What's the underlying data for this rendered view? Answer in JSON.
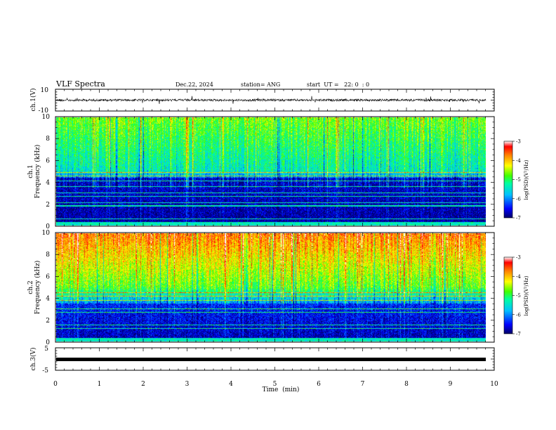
{
  "header": {
    "title": "VLF Spectra",
    "date": "Dec.22, 2024",
    "station": "station= ANG",
    "start_ut": "start  UT =   22: 0  : 0"
  },
  "chart_data": [
    {
      "type": "line",
      "panel": "ch1-waveform",
      "ylabel": "ch.1(V)",
      "ylim": [
        -10,
        10
      ],
      "yticks": [
        "10",
        "-10"
      ],
      "xlim": [
        0,
        10
      ]
    },
    {
      "type": "heatmap",
      "panel": "ch1-spectrogram",
      "ylabel_line1": "ch.1",
      "ylabel_line2": "Frequency (kHz)",
      "ylim": [
        0,
        10
      ],
      "yticks": [
        "10",
        "8",
        "6",
        "4",
        "2",
        "0"
      ],
      "xlim": [
        0,
        10
      ],
      "colorbar": {
        "label": "log(PSD)(V²/Hz)",
        "range": [
          -7,
          -3
        ],
        "ticks": [
          "-3",
          "-4",
          "-5",
          "-6",
          "-7"
        ]
      }
    },
    {
      "type": "heatmap",
      "panel": "ch2-spectrogram",
      "ylabel_line1": "ch.2",
      "ylabel_line2": "Frequency (kHz)",
      "ylim": [
        0,
        10
      ],
      "yticks": [
        "10",
        "8",
        "6",
        "4",
        "2",
        "0"
      ],
      "xlim": [
        0,
        10
      ],
      "colorbar": {
        "label": "log(PSD)(V²/Hz)",
        "range": [
          -7,
          -3
        ],
        "ticks": [
          "-3",
          "-4",
          "-5",
          "-6",
          "-7"
        ]
      }
    },
    {
      "type": "line",
      "panel": "ch3-waveform",
      "ylabel": "ch.3(V)",
      "ylim": [
        -5,
        5
      ],
      "yticks": [
        "5",
        "-5"
      ],
      "xlim": [
        0,
        10
      ]
    }
  ],
  "xaxis": {
    "label": "Time  (min)",
    "ticks": [
      "0",
      "1",
      "2",
      "3",
      "4",
      "5",
      "6",
      "7",
      "8",
      "9",
      "10"
    ]
  },
  "colors": {
    "colormap": [
      "#000066",
      "#0000ff",
      "#00c0ff",
      "#00ffa0",
      "#40ff00",
      "#ffff00",
      "#ff8000",
      "#ff0000",
      "#ffffff"
    ]
  }
}
